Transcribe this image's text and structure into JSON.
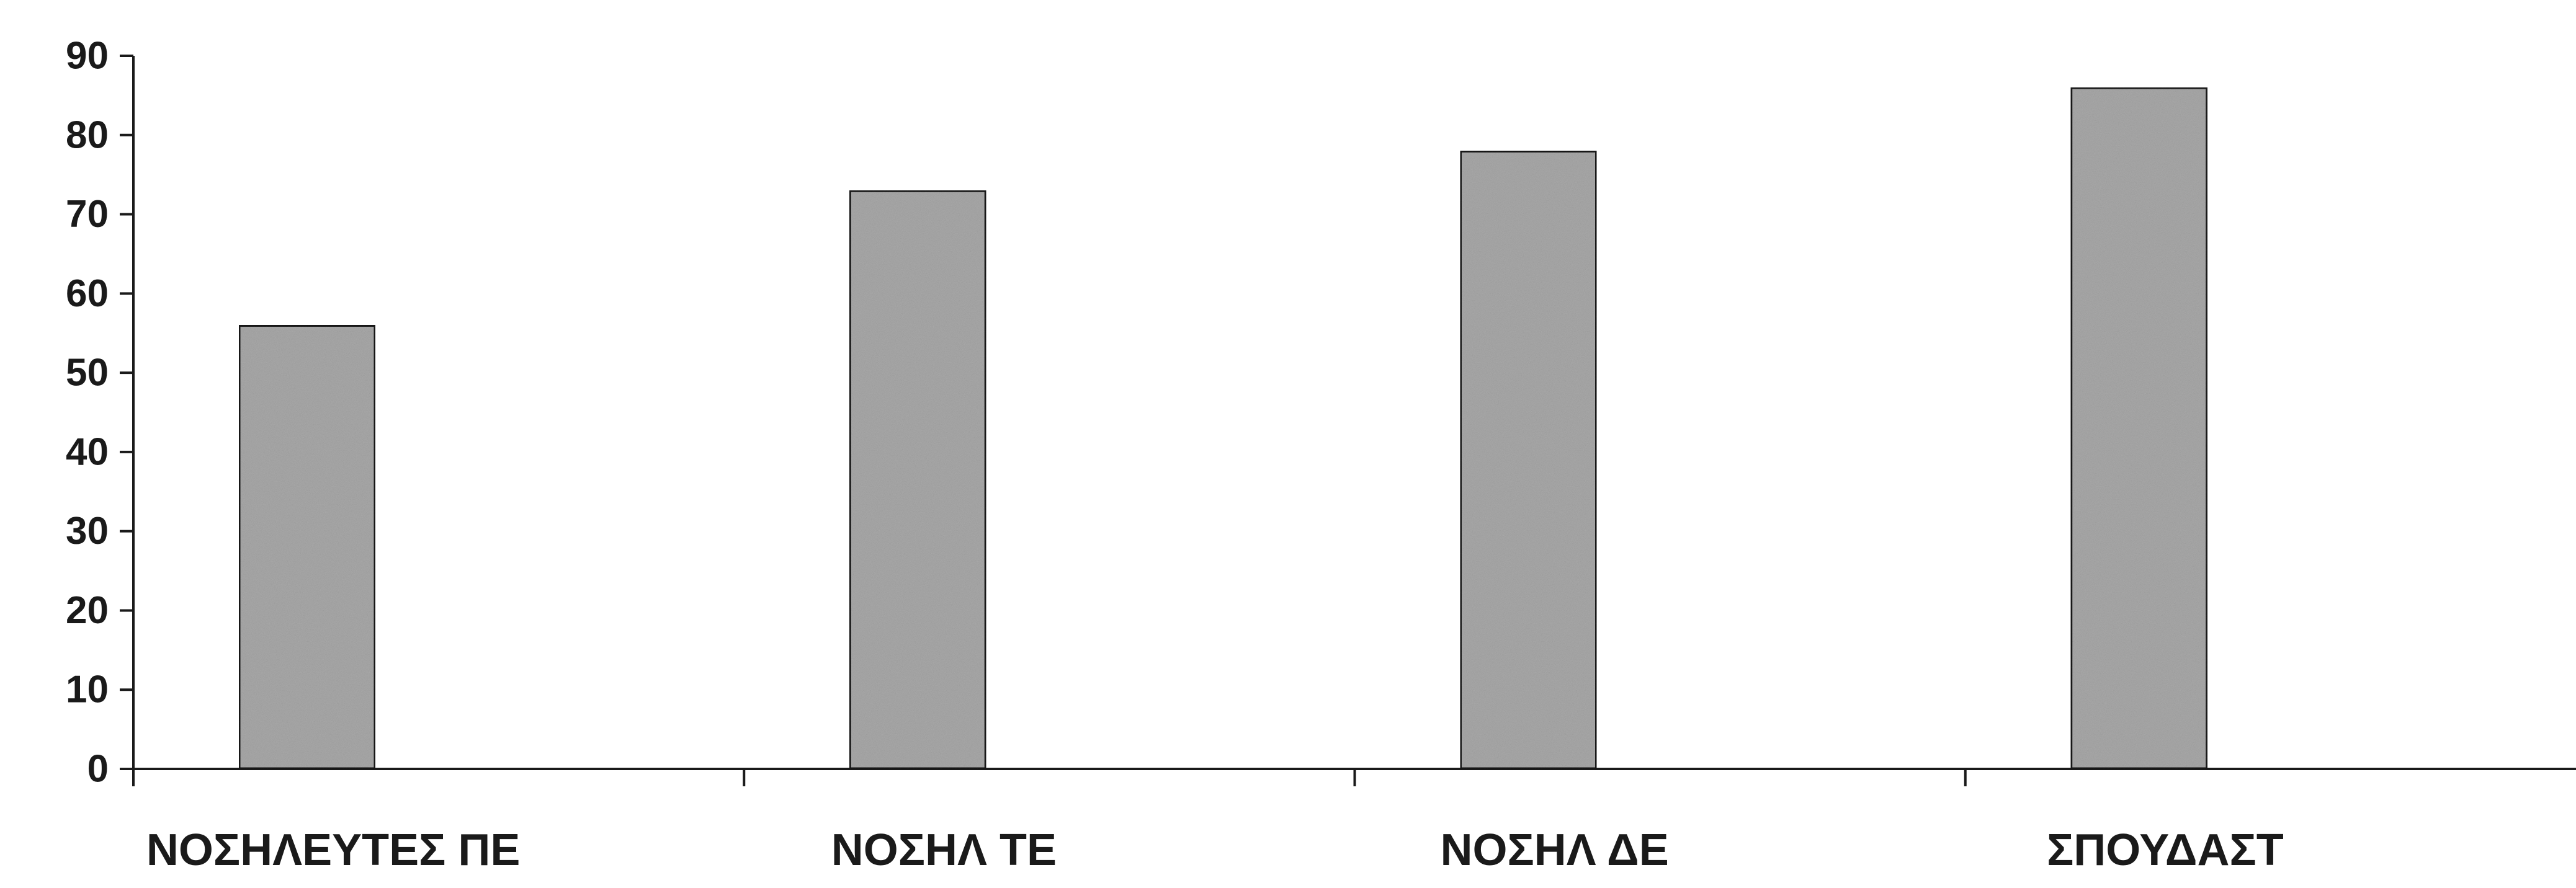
{
  "chart_data": {
    "type": "bar",
    "categories": [
      "ΝΟΣΗΛΕΥΤΕΣ ΠΕ",
      "ΝΟΣΗΛ ΤΕ",
      "ΝΟΣΗΛ ΔΕ",
      "ΣΠΟΥΔΑΣΤ"
    ],
    "values": [
      56,
      73,
      78,
      86
    ],
    "title": "",
    "xlabel": "",
    "ylabel": "",
    "ylim": [
      0,
      90
    ],
    "yticks": [
      0,
      10,
      20,
      30,
      40,
      50,
      60,
      70,
      80,
      90
    ],
    "grid": false,
    "legend": "none",
    "bar_color": "#a9a9a9",
    "bar_edge_color": "#1a1a1a",
    "axis_color": "#1a1a1a"
  }
}
